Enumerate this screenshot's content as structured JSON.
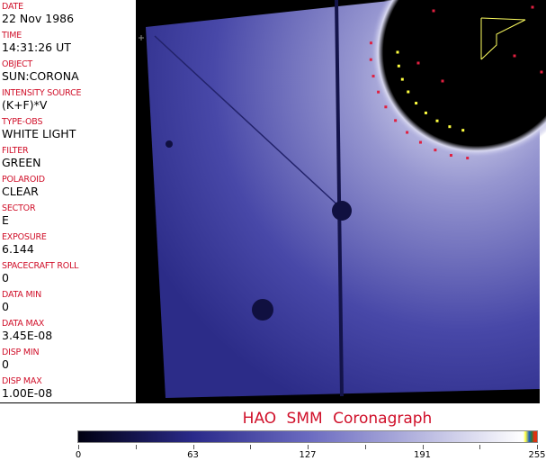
{
  "fields": [
    {
      "label": "DATE",
      "value": "22 Nov 1986"
    },
    {
      "label": "TIME",
      "value": "14:31:26 UT"
    },
    {
      "label": "OBJECT",
      "value": "SUN:CORONA"
    },
    {
      "label": "INTENSITY SOURCE",
      "value": "(K+F)*V"
    },
    {
      "label": "TYPE-OBS",
      "value": "WHITE LIGHT"
    },
    {
      "label": "FILTER",
      "value": "GREEN"
    },
    {
      "label": "POLAROID",
      "value": "CLEAR"
    },
    {
      "label": "SECTOR",
      "value": "E"
    },
    {
      "label": "EXPOSURE",
      "value": "6.144"
    },
    {
      "label": "SPACECRAFT ROLL",
      "value": "0"
    },
    {
      "label": "DATA MIN",
      "value": "0"
    },
    {
      "label": "DATA MAX",
      "value": "3.45E-08"
    },
    {
      "label": "DISP MIN",
      "value": "0"
    },
    {
      "label": "DISP MAX",
      "value": "1.00E-08"
    }
  ],
  "title": "HAO  SMM Coronagraph",
  "colorbar": {
    "ticks": [
      "0",
      "63",
      "127",
      "191",
      "255"
    ],
    "min": 0,
    "max": 255,
    "colors": [
      "#000010",
      "#2a2a8a",
      "#6a6ac0",
      "#b8b8e0",
      "#ffffff"
    ]
  }
}
